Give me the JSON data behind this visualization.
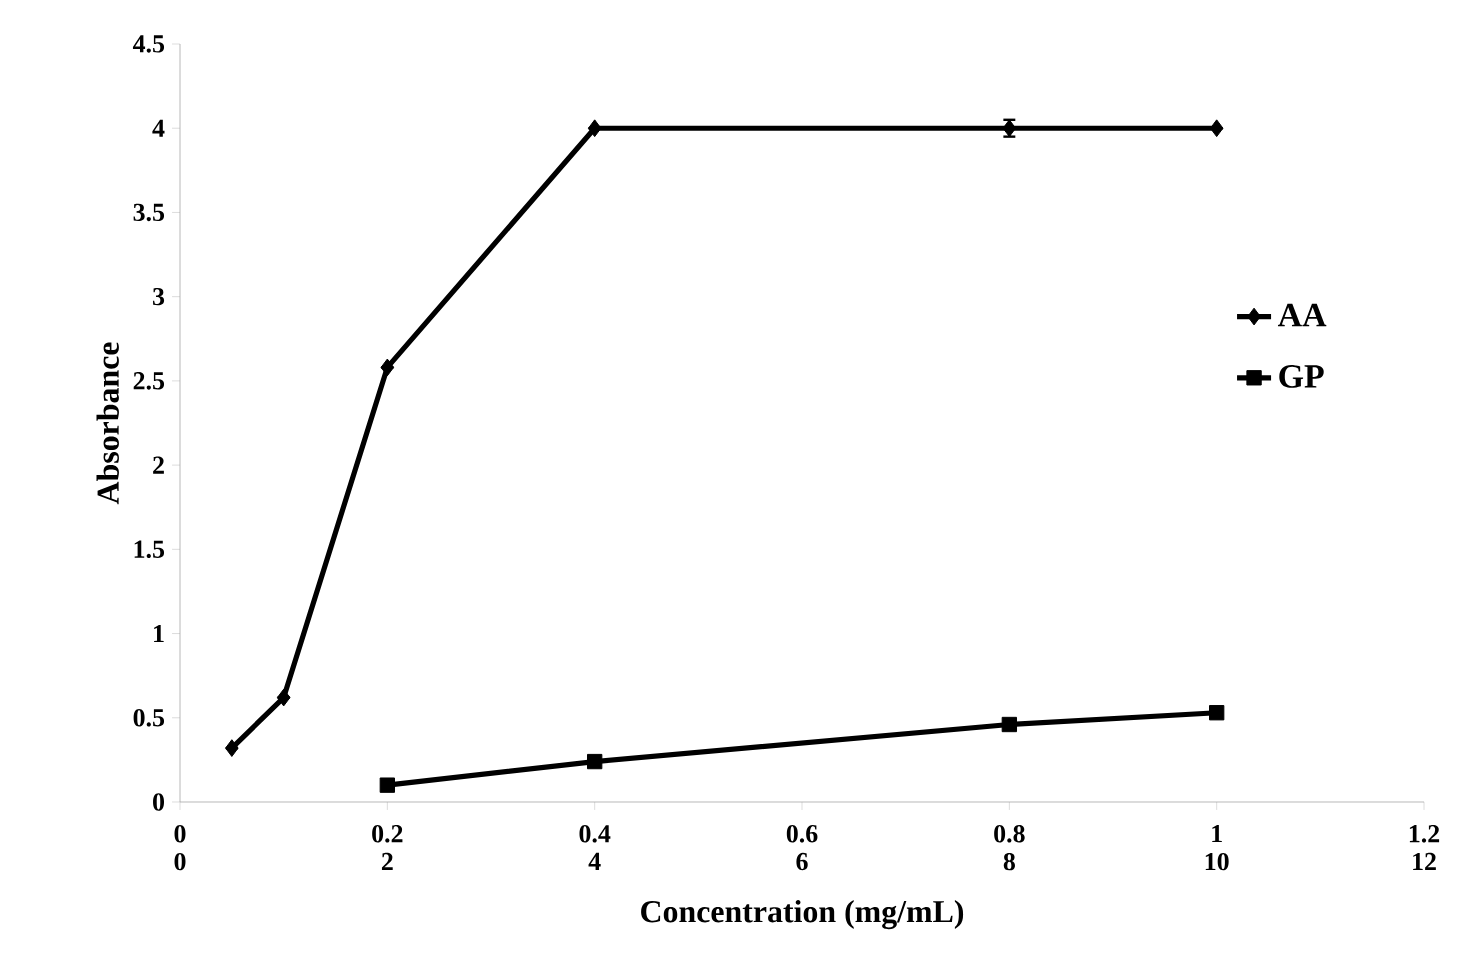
{
  "chart_data": {
    "type": "line",
    "xlabel": "Concentration (mg/mL)",
    "ylabel": "Absorbance",
    "xlim": [
      0,
      1.2
    ],
    "xticks": [
      0,
      0.2,
      0.4,
      0.6,
      0.8,
      1,
      1.2
    ],
    "x2lim": [
      0,
      12
    ],
    "x2ticks": [
      0,
      2,
      4,
      6,
      8,
      10,
      12
    ],
    "ylim": [
      0,
      4.5
    ],
    "yticks": [
      0,
      0.5,
      1,
      1.5,
      2,
      2.5,
      3,
      3.5,
      4,
      4.5
    ],
    "grid": false,
    "legend": "right",
    "series": [
      {
        "name": "AA",
        "color": "#000000",
        "marker": "diamond",
        "x": [
          0.05,
          0.1,
          0.2,
          0.4,
          0.8,
          1
        ],
        "values": [
          0.32,
          0.62,
          2.58,
          4,
          4,
          4
        ],
        "errors": [
          null,
          null,
          null,
          null,
          0.05,
          null
        ]
      },
      {
        "name": "GP",
        "color": "#000000",
        "marker": "square",
        "x": [
          0.2,
          0.4,
          0.8,
          1
        ],
        "values": [
          0.1,
          0.24,
          0.46,
          0.53
        ]
      }
    ]
  }
}
